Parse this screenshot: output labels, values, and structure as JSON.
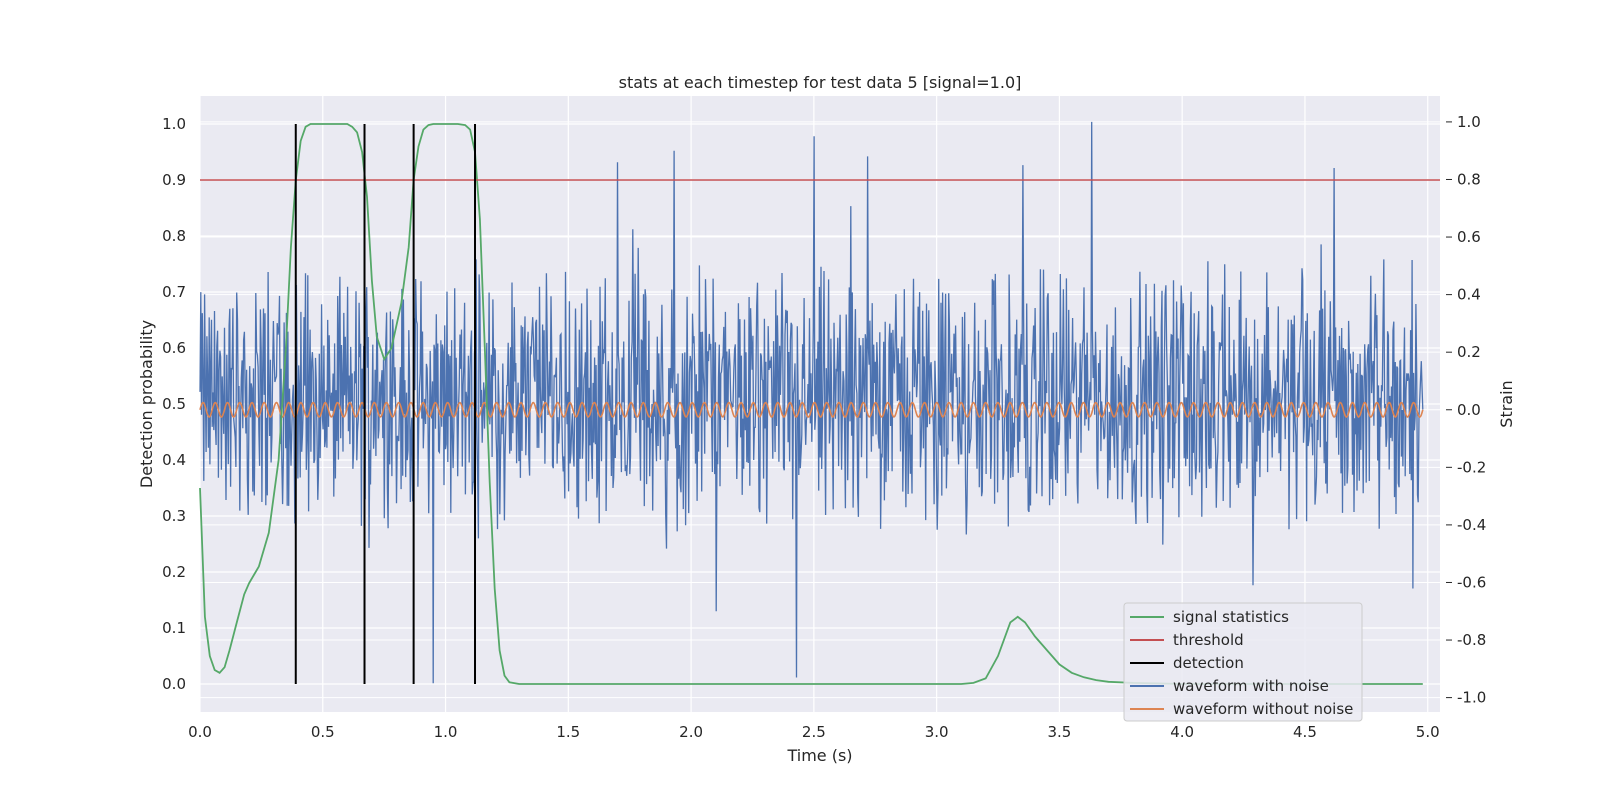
{
  "chart_data": {
    "type": "line",
    "title": "stats at each timestep for test data 5 [signal=1.0]",
    "xlabel": "Time (s)",
    "ylabel": "Detection probability",
    "y2label": "Strain",
    "xlim": [
      0.0,
      5.05
    ],
    "ylim": [
      -0.05,
      1.05
    ],
    "y2lim": [
      -1.05,
      1.09
    ],
    "xticks": [
      "0.0",
      "0.5",
      "1.0",
      "1.5",
      "2.0",
      "2.5",
      "3.0",
      "3.5",
      "4.0",
      "4.5",
      "5.0"
    ],
    "yticks": [
      "0.0",
      "0.1",
      "0.2",
      "0.3",
      "0.4",
      "0.5",
      "0.6",
      "0.7",
      "0.8",
      "0.9",
      "1.0"
    ],
    "y2ticks": [
      "-1.0",
      "-0.8",
      "-0.6",
      "-0.4",
      "-0.2",
      "0.0",
      "0.2",
      "0.4",
      "0.6",
      "0.8",
      "1.0"
    ],
    "grid": true,
    "legend_position": "lower-right",
    "threshold": 0.9,
    "detections": [
      0.39,
      0.67,
      0.87,
      1.12
    ],
    "signal_statistics": {
      "name": "signal statistics",
      "color": "#55a868",
      "x": [
        0.0,
        0.02,
        0.04,
        0.06,
        0.08,
        0.1,
        0.12,
        0.15,
        0.18,
        0.2,
        0.24,
        0.28,
        0.32,
        0.35,
        0.37,
        0.39,
        0.41,
        0.43,
        0.45,
        0.5,
        0.55,
        0.6,
        0.62,
        0.64,
        0.66,
        0.68,
        0.7,
        0.72,
        0.75,
        0.78,
        0.82,
        0.85,
        0.87,
        0.89,
        0.91,
        0.93,
        0.95,
        1.0,
        1.05,
        1.08,
        1.1,
        1.12,
        1.14,
        1.16,
        1.18,
        1.2,
        1.22,
        1.24,
        1.26,
        1.3,
        1.5,
        2.0,
        2.5,
        3.0,
        3.1,
        3.15,
        3.2,
        3.25,
        3.3,
        3.33,
        3.36,
        3.4,
        3.45,
        3.5,
        3.55,
        3.6,
        3.65,
        3.7,
        3.8,
        3.9,
        4.0,
        4.5,
        4.98
      ],
      "values": [
        0.35,
        0.12,
        0.05,
        0.025,
        0.02,
        0.03,
        0.06,
        0.11,
        0.16,
        0.18,
        0.21,
        0.27,
        0.4,
        0.6,
        0.78,
        0.9,
        0.97,
        0.995,
        1.0,
        1.0,
        1.0,
        1.0,
        0.995,
        0.985,
        0.95,
        0.87,
        0.72,
        0.62,
        0.58,
        0.6,
        0.68,
        0.78,
        0.9,
        0.96,
        0.99,
        0.998,
        1.0,
        1.0,
        1.0,
        0.998,
        0.99,
        0.95,
        0.83,
        0.6,
        0.36,
        0.17,
        0.06,
        0.015,
        0.003,
        0.0,
        0.0,
        0.0,
        0.0,
        0.0,
        0.0,
        0.002,
        0.01,
        0.05,
        0.11,
        0.12,
        0.11,
        0.085,
        0.06,
        0.035,
        0.02,
        0.012,
        0.007,
        0.004,
        0.002,
        0.001,
        0.0,
        0.0,
        0.0
      ]
    },
    "threshold_series": {
      "name": "threshold",
      "color": "#c44e52"
    },
    "detection_series": {
      "name": "detection",
      "color": "#000000"
    },
    "noisy_waveform": {
      "name": "waveform with noise",
      "color": "#4c72b0",
      "x_range": [
        0.0,
        4.98
      ],
      "typical_range": [
        -0.5,
        0.55
      ],
      "peak_values": [
        1.0,
        0.95,
        0.9,
        0.88,
        0.86,
        0.85,
        0.84,
        -0.93,
        -0.95
      ]
    },
    "clean_waveform": {
      "name": "waveform without noise",
      "color": "#dd8452",
      "x_range": [
        0.0,
        4.98
      ],
      "amplitude": 0.025,
      "cycles": 100
    }
  }
}
